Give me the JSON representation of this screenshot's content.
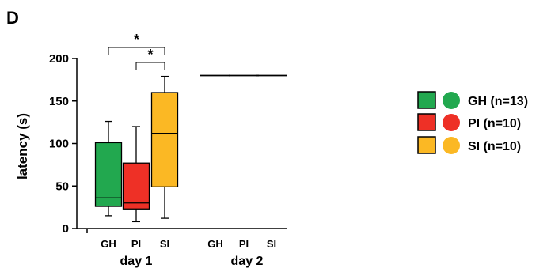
{
  "panel_label": "D",
  "chart_data": {
    "type": "box",
    "ylabel": "latency (s)",
    "ylim": [
      0,
      200
    ],
    "yticks": [
      0,
      50,
      100,
      150,
      200
    ],
    "groups": [
      {
        "label": "day 1",
        "categories": [
          "GH",
          "PI",
          "SI"
        ]
      },
      {
        "label": "day 2",
        "categories": [
          "GH",
          "PI",
          "SI"
        ]
      }
    ],
    "series": [
      {
        "name": "GH (n=13)",
        "color": "#22a84f",
        "day1": {
          "min": 15,
          "q1": 26,
          "median": 36,
          "q3": 101,
          "max": 126
        },
        "day2": {
          "min": 180,
          "q1": 180,
          "median": 180,
          "q3": 180,
          "max": 180
        }
      },
      {
        "name": "PI (n=10)",
        "color": "#ee3026",
        "day1": {
          "min": 8,
          "q1": 23,
          "median": 30,
          "q3": 77,
          "max": 120
        },
        "day2": {
          "min": 180,
          "q1": 180,
          "median": 180,
          "q3": 180,
          "max": 180
        }
      },
      {
        "name": "SI (n=10)",
        "color": "#fbb824",
        "day1": {
          "min": 12,
          "q1": 49,
          "median": 112,
          "q3": 160,
          "max": 179
        },
        "day2": {
          "min": 180,
          "q1": 180,
          "median": 180,
          "q3": 180,
          "max": 180
        }
      }
    ],
    "significance": [
      {
        "between": [
          "GH",
          "SI"
        ],
        "label": "*"
      },
      {
        "between": [
          "PI",
          "SI"
        ],
        "label": "*"
      }
    ],
    "legend": "right",
    "grid": false
  }
}
